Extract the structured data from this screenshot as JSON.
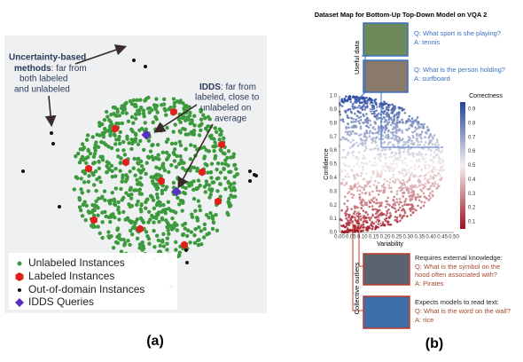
{
  "panel_a": {
    "uncertainty": {
      "bold": [
        "Uncertainty-based",
        "methods"
      ],
      "text": [
        ": far from",
        "both labeled",
        "and unlabeled"
      ]
    },
    "idds": {
      "bold": "IDDS",
      "text": [
        ": far from",
        "labeled, close to",
        "unlabeled on",
        "average"
      ]
    },
    "legend": [
      "Unlabeled Instances",
      "Labeled Instances",
      "Out-of-domain Instances",
      "IDDS Queries"
    ],
    "caption": "(a)"
  },
  "panel_b": {
    "title": "Dataset Map for Bottom-Up Top-Down Model on VQA 2",
    "y_label": "Confidence",
    "x_label": "Variability",
    "colorbar_label": "Correctness",
    "xticks": [
      "0.00",
      "0.05",
      "0.10",
      "0.15",
      "0.20",
      "0.25",
      "0.30",
      "0.35",
      "0.40",
      "0.45",
      "0.50"
    ],
    "yticks": [
      "0.0",
      "0.1",
      "0.2",
      "0.3",
      "0.4",
      "0.5",
      "0.6",
      "0.7",
      "0.8",
      "0.9",
      "1.0"
    ],
    "colorbar_ticks": [
      "0.9",
      "0.8",
      "0.7",
      "0.6",
      "0.5",
      "0.4",
      "0.3",
      "0.2",
      "0.1"
    ],
    "top_label": "Useful data",
    "bottom_label": "Collective outliers",
    "examples": [
      {
        "q": "Q: What sport is she playing?",
        "a": "A: tennis"
      },
      {
        "q": "Q: What is the person holding?",
        "a": "A: surfboard"
      }
    ],
    "outliers": [
      {
        "heading": "Requires external knowledge:",
        "q": [
          "Q: What is the symbol on the",
          "hood often associated with?"
        ],
        "a": "A: Pirates"
      },
      {
        "heading": "Expects models to read text:",
        "q": [
          "Q: What is the word on the wall?"
        ],
        "a": "A: rice"
      }
    ],
    "caption": "(b)"
  }
}
